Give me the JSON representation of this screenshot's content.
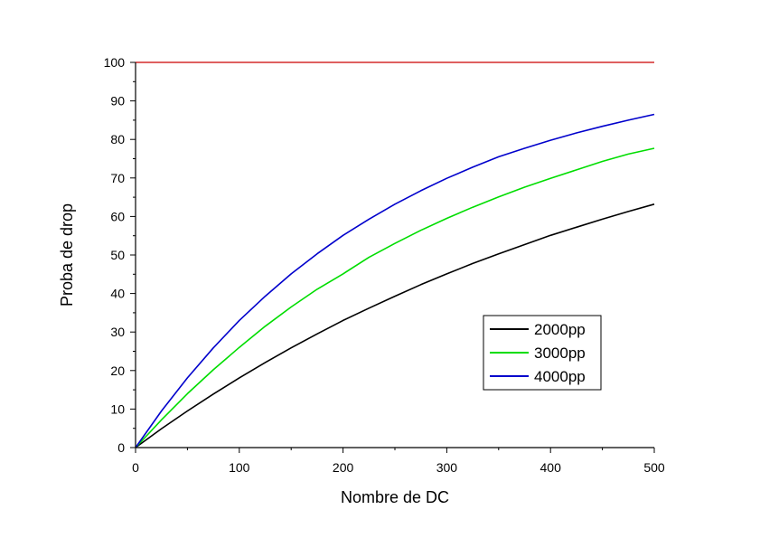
{
  "chart_data": {
    "type": "line",
    "title": "",
    "xlabel": "Nombre de DC",
    "ylabel": "Proba de drop",
    "xlim": [
      0,
      500
    ],
    "ylim": [
      0,
      100
    ],
    "xticks": [
      0,
      100,
      200,
      300,
      400,
      500
    ],
    "yticks": [
      0,
      10,
      20,
      30,
      40,
      50,
      60,
      70,
      80,
      90,
      100
    ],
    "grid": false,
    "legend_position": "lower-right",
    "reference_line": {
      "y": 100,
      "color": "#cc0000"
    },
    "x": [
      0,
      25,
      50,
      75,
      100,
      125,
      150,
      175,
      200,
      225,
      250,
      275,
      300,
      325,
      350,
      375,
      400,
      425,
      450,
      475,
      500
    ],
    "series": [
      {
        "name": "2000pp",
        "color": "#000000",
        "values": [
          0,
          4.9,
          9.5,
          13.9,
          18.1,
          22.1,
          25.9,
          29.5,
          33.0,
          36.2,
          39.3,
          42.3,
          45.1,
          47.8,
          50.3,
          52.7,
          55.1,
          57.2,
          59.3,
          61.3,
          63.2
        ]
      },
      {
        "name": "3000pp",
        "color": "#00dd00",
        "values": [
          0,
          7.2,
          14.0,
          20.2,
          26.0,
          31.5,
          36.5,
          41.1,
          45.1,
          49.4,
          53.0,
          56.4,
          59.5,
          62.4,
          65.1,
          67.6,
          69.9,
          72.1,
          74.3,
          76.2,
          77.7
        ]
      },
      {
        "name": "4000pp",
        "color": "#0000cc",
        "values": [
          0,
          9.5,
          18.1,
          25.9,
          33.0,
          39.3,
          45.1,
          50.3,
          55.1,
          59.3,
          63.2,
          66.7,
          69.9,
          72.8,
          75.5,
          77.7,
          79.8,
          81.7,
          83.4,
          85.0,
          86.5
        ]
      }
    ]
  }
}
